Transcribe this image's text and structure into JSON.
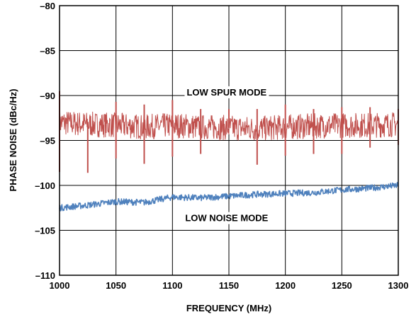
{
  "chart_data": {
    "type": "line",
    "title": "",
    "xlabel": "FREQUENCY (MHz)",
    "ylabel": "PHASE NOISE (dBc/Hz)",
    "xlim": [
      1000,
      1300
    ],
    "ylim": [
      -110,
      -80
    ],
    "x_ticks": [
      1000,
      1050,
      1100,
      1150,
      1200,
      1250,
      1300
    ],
    "y_ticks": [
      -80,
      -85,
      -90,
      -95,
      -100,
      -105,
      -110
    ],
    "x_tick_labels": [
      "1000",
      "1050",
      "1100",
      "1150",
      "1200",
      "1250",
      "1300"
    ],
    "y_tick_labels": [
      "–80",
      "–85",
      "–90",
      "–95",
      "–100",
      "–105",
      "–110"
    ],
    "grid": true,
    "series": [
      {
        "name": "LOW SPUR MODE",
        "color": "#c0504d",
        "x": [
          1000,
          1025,
          1050,
          1075,
          1100,
          1125,
          1150,
          1175,
          1200,
          1225,
          1250,
          1275,
          1300
        ],
        "y": [
          -93.0,
          -93.2,
          -93.3,
          -93.5,
          -93.3,
          -93.5,
          -93.6,
          -93.7,
          -93.5,
          -93.4,
          -93.3,
          -93.3,
          -93.2
        ],
        "noise_band": 1.4,
        "spikes_up": [
          {
            "x": 1000,
            "y": -89.5
          },
          {
            "x": 1050,
            "y": -90.7
          },
          {
            "x": 1075,
            "y": -91.0
          },
          {
            "x": 1100,
            "y": -90.5
          },
          {
            "x": 1125,
            "y": -91.5
          },
          {
            "x": 1150,
            "y": -91.5
          },
          {
            "x": 1175,
            "y": -91.5
          },
          {
            "x": 1200,
            "y": -91.0
          },
          {
            "x": 1225,
            "y": -91.5
          },
          {
            "x": 1250,
            "y": -91.3
          },
          {
            "x": 1275,
            "y": -91.3
          },
          {
            "x": 1300,
            "y": -91.5
          }
        ],
        "spikes_down": [
          {
            "x": 1000,
            "y": -98.5
          },
          {
            "x": 1025,
            "y": -98.6
          },
          {
            "x": 1050,
            "y": -97.0
          },
          {
            "x": 1075,
            "y": -97.6
          },
          {
            "x": 1100,
            "y": -96.8
          },
          {
            "x": 1125,
            "y": -96.5
          },
          {
            "x": 1175,
            "y": -97.7
          },
          {
            "x": 1200,
            "y": -96.7
          },
          {
            "x": 1225,
            "y": -96.5
          },
          {
            "x": 1250,
            "y": -96.5
          },
          {
            "x": 1275,
            "y": -95.8
          },
          {
            "x": 1300,
            "y": -95.5
          }
        ]
      },
      {
        "name": "LOW NOISE MODE",
        "color": "#4f81bd",
        "x": [
          1000,
          1025,
          1050,
          1075,
          1100,
          1125,
          1150,
          1175,
          1200,
          1225,
          1250,
          1275,
          1300
        ],
        "y": [
          -102.5,
          -102.2,
          -101.8,
          -101.9,
          -101.3,
          -101.4,
          -101.2,
          -101.0,
          -100.9,
          -100.8,
          -100.5,
          -100.3,
          -100.0
        ],
        "noise_band": 0.35
      }
    ],
    "annotations": [
      {
        "text": "LOW SPUR MODE",
        "x": 1148,
        "y": -89.6
      },
      {
        "text": "LOW NOISE MODE",
        "x": 1148,
        "y": -103.6
      }
    ]
  }
}
